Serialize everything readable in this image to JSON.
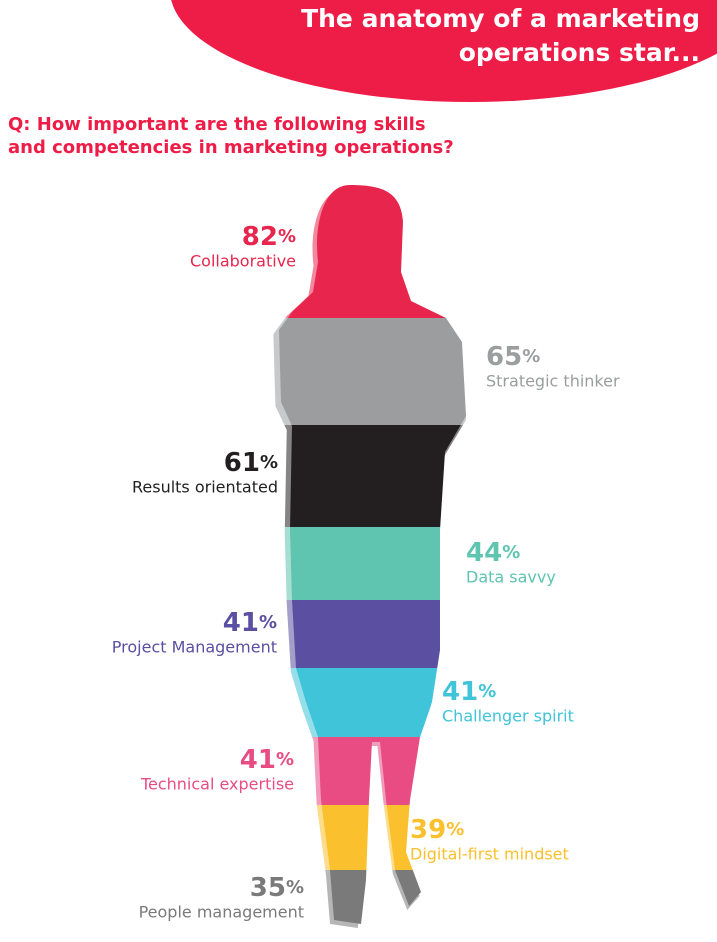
{
  "header": {
    "title_lines": [
      "The anatomy of a marketing",
      "operations star..."
    ]
  },
  "question_lines": [
    "Q: How important are the following skills",
    "and competencies in marketing operations?"
  ],
  "unit": "%",
  "items": [
    {
      "value": 82,
      "label": "Collaborative",
      "color": "#e8264d"
    },
    {
      "value": 65,
      "label": "Strategic thinker",
      "color": "#9b9d9e"
    },
    {
      "value": 61,
      "label": "Results orientated",
      "color": "#231f20"
    },
    {
      "value": 44,
      "label": "Data savvy",
      "color": "#5fc4b0"
    },
    {
      "value": 41,
      "label": "Project Management",
      "color": "#5a4fa0"
    },
    {
      "value": 41,
      "label": "Challenger spirit",
      "color": "#3fc4d9"
    },
    {
      "value": 41,
      "label": "Technical expertise",
      "color": "#e84c83"
    },
    {
      "value": 39,
      "label": "Digital-first mindset",
      "color": "#fbc02d"
    },
    {
      "value": 35,
      "label": "People management",
      "color": "#7a7a7a"
    }
  ]
}
